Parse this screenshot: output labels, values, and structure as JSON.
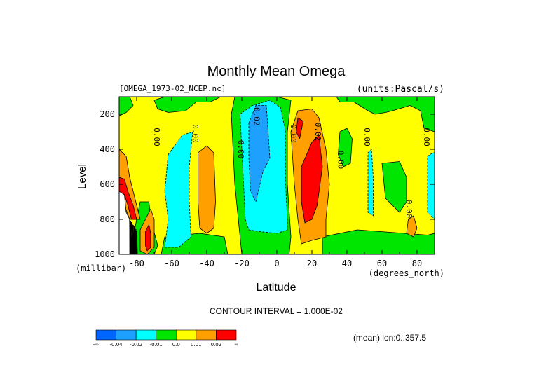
{
  "chart_data": {
    "type": "heatmap",
    "title": "Monthly Mean Omega",
    "dataset_label": "[OMEGA_1973-02_NCEP.nc]",
    "units_label": "(units:Pascal/s)",
    "xlabel": "Latitude",
    "x_units_label": "(degrees_north)",
    "ylabel": "Level",
    "y_units_label": "(millibar)",
    "xlim": [
      -90,
      90
    ],
    "ylim": [
      1000,
      100
    ],
    "x_ticks": [
      -80,
      -60,
      -40,
      -20,
      0,
      20,
      40,
      60,
      80
    ],
    "x_tick_labels": [
      "-80",
      "-60",
      "-40",
      "-20",
      "0",
      "20",
      "40",
      "60",
      "80"
    ],
    "y_ticks": [
      200,
      400,
      600,
      800,
      1000
    ],
    "y_tick_labels": [
      "200",
      "400",
      "600",
      "800",
      "1000"
    ],
    "contour_interval_text": "CONTOUR INTERVAL = 1.000E-02",
    "subset_text": "(mean) lon:0..357.5",
    "contour_levels": [
      -0.04,
      -0.02,
      -0.01,
      0.0,
      0.01,
      0.02
    ],
    "colorbar": {
      "colors": [
        "#0064ff",
        "#1ea0ff",
        "#00ffff",
        "#00e600",
        "#ffff00",
        "#ffa000",
        "#ff0000"
      ],
      "labels": [
        "-∞",
        "-0.04",
        "-0.02",
        "-0.01",
        "0.0",
        "0.01",
        "0.02",
        "∞"
      ]
    },
    "contour_labels": [
      {
        "text": "0.00",
        "lat": -70,
        "lev": 330
      },
      {
        "text": "0.00",
        "lat": -48,
        "lev": 310
      },
      {
        "text": "0.00",
        "lat": -22,
        "lev": 400
      },
      {
        "text": "-0.02",
        "lat": -13,
        "lev": 200
      },
      {
        "text": "0.00",
        "lat": 8,
        "lev": 310
      },
      {
        "text": "0.02",
        "lat": 22,
        "lev": 300
      },
      {
        "text": "0.00",
        "lat": 35,
        "lev": 460
      },
      {
        "text": "0.00",
        "lat": 50,
        "lev": 330
      },
      {
        "text": "0.00",
        "lat": 74,
        "lev": 740
      },
      {
        "text": "0.00",
        "lat": 84,
        "lev": 330
      }
    ],
    "regions": [
      {
        "c": 4,
        "pts": [
          [
            -90,
            100
          ],
          [
            90,
            100
          ],
          [
            90,
            1000
          ],
          [
            -90,
            1000
          ]
        ]
      },
      {
        "c": 3,
        "pts": [
          [
            -90,
            100
          ],
          [
            -84,
            100
          ],
          [
            -82,
            150
          ],
          [
            -86,
            190
          ],
          [
            -90,
            210
          ]
        ]
      },
      {
        "c": 3,
        "pts": [
          [
            -64,
            100
          ],
          [
            -32,
            100
          ],
          [
            -38,
            130
          ],
          [
            -46,
            130
          ],
          [
            -52,
            180
          ],
          [
            -62,
            190
          ],
          [
            -68,
            170
          ],
          [
            -70,
            120
          ]
        ]
      },
      {
        "c": 3,
        "pts": [
          [
            -24,
            100
          ],
          [
            0,
            100
          ],
          [
            8,
            120
          ],
          [
            6,
            300
          ],
          [
            6,
            600
          ],
          [
            8,
            900
          ],
          [
            7,
            1000
          ],
          [
            -20,
            1000
          ],
          [
            -24,
            600
          ],
          [
            -26,
            200
          ]
        ]
      },
      {
        "c": 3,
        "pts": [
          [
            34,
            100
          ],
          [
            90,
            100
          ],
          [
            90,
            300
          ],
          [
            84,
            280
          ],
          [
            82,
            180
          ],
          [
            76,
            150
          ],
          [
            66,
            180
          ],
          [
            62,
            190
          ],
          [
            56,
            200
          ],
          [
            52,
            180
          ],
          [
            44,
            130
          ],
          [
            36,
            130
          ]
        ]
      },
      {
        "c": 3,
        "pts": [
          [
            -78,
            700
          ],
          [
            -73,
            700
          ],
          [
            -72,
            800
          ],
          [
            -68,
            950
          ],
          [
            -70,
            1000
          ],
          [
            -82,
            1000
          ],
          [
            -82,
            900
          ],
          [
            -80,
            800
          ]
        ]
      },
      {
        "c": 3,
        "pts": [
          [
            -64,
            900
          ],
          [
            -44,
            880
          ],
          [
            -30,
            900
          ],
          [
            -28,
            1000
          ],
          [
            -66,
            1000
          ]
        ]
      },
      {
        "c": 3,
        "pts": [
          [
            26,
            900
          ],
          [
            46,
            860
          ],
          [
            86,
            890
          ],
          [
            90,
            880
          ],
          [
            90,
            1000
          ],
          [
            26,
            1000
          ]
        ]
      },
      {
        "c": 3,
        "pts": [
          [
            36,
            300
          ],
          [
            40,
            280
          ],
          [
            43,
            340
          ],
          [
            42,
            480
          ],
          [
            38,
            500
          ],
          [
            35,
            430
          ]
        ]
      },
      {
        "c": 3,
        "pts": [
          [
            60,
            480
          ],
          [
            70,
            470
          ],
          [
            74,
            560
          ],
          [
            74,
            700
          ],
          [
            70,
            760
          ],
          [
            62,
            680
          ]
        ]
      },
      {
        "c": 2,
        "pts": [
          [
            -62,
            430
          ],
          [
            -54,
            320
          ],
          [
            -48,
            300
          ],
          [
            -50,
            500
          ],
          [
            -50,
            700
          ],
          [
            -49,
            900
          ],
          [
            -56,
            960
          ],
          [
            -64,
            960
          ],
          [
            -62,
            800
          ],
          [
            -64,
            640
          ]
        ]
      },
      {
        "c": 2,
        "pts": [
          [
            -21,
            200
          ],
          [
            -14,
            150
          ],
          [
            -4,
            120
          ],
          [
            2,
            160
          ],
          [
            5,
            300
          ],
          [
            5,
            600
          ],
          [
            6,
            800
          ],
          [
            6,
            860
          ],
          [
            0,
            880
          ],
          [
            -10,
            870
          ],
          [
            -16,
            860
          ],
          [
            -18,
            800
          ],
          [
            -19,
            600
          ],
          [
            -20,
            400
          ]
        ]
      },
      {
        "c": 2,
        "pts": [
          [
            52,
            420
          ],
          [
            54,
            400
          ],
          [
            55,
            560
          ],
          [
            55,
            780
          ],
          [
            52,
            760
          ]
        ]
      },
      {
        "c": 2,
        "pts": [
          [
            86,
            440
          ],
          [
            89,
            420
          ],
          [
            90,
            420
          ],
          [
            90,
            800
          ],
          [
            86,
            760
          ]
        ]
      },
      {
        "c": 1,
        "pts": [
          [
            -16,
            250
          ],
          [
            -12,
            150
          ],
          [
            -6,
            150
          ],
          [
            -5,
            300
          ],
          [
            -4,
            450
          ],
          [
            -8,
            530
          ],
          [
            -12,
            700
          ],
          [
            -15,
            640
          ],
          [
            -16,
            450
          ]
        ]
      },
      {
        "c": 5,
        "pts": [
          [
            -90,
            400
          ],
          [
            -86,
            440
          ],
          [
            -84,
            560
          ],
          [
            -82,
            640
          ],
          [
            -80,
            720
          ],
          [
            -78,
            800
          ],
          [
            -84,
            800
          ],
          [
            -90,
            640
          ]
        ]
      },
      {
        "c": 5,
        "pts": [
          [
            -45,
            420
          ],
          [
            -40,
            380
          ],
          [
            -36,
            420
          ],
          [
            -35,
            700
          ],
          [
            -36,
            850
          ],
          [
            -40,
            880
          ],
          [
            -44,
            850
          ],
          [
            -45,
            700
          ]
        ]
      },
      {
        "c": 5,
        "pts": [
          [
            -78,
            860
          ],
          [
            -72,
            740
          ],
          [
            -70,
            800
          ],
          [
            -70,
            960
          ],
          [
            -74,
            1000
          ],
          [
            -78,
            980
          ]
        ]
      },
      {
        "c": 5,
        "pts": [
          [
            8,
            300
          ],
          [
            12,
            180
          ],
          [
            20,
            170
          ],
          [
            24,
            220
          ],
          [
            28,
            400
          ],
          [
            30,
            600
          ],
          [
            28,
            800
          ],
          [
            28,
            900
          ],
          [
            20,
            920
          ],
          [
            14,
            940
          ],
          [
            12,
            800
          ],
          [
            10,
            600
          ]
        ]
      },
      {
        "c": 5,
        "pts": [
          [
            75,
            800
          ],
          [
            78,
            780
          ],
          [
            80,
            850
          ],
          [
            78,
            900
          ],
          [
            74,
            880
          ]
        ]
      },
      {
        "c": 6,
        "pts": [
          [
            11,
            300
          ],
          [
            12,
            220
          ],
          [
            15,
            240
          ],
          [
            13,
            340
          ]
        ]
      },
      {
        "c": 6,
        "pts": [
          [
            14,
            500
          ],
          [
            20,
            360
          ],
          [
            24,
            320
          ],
          [
            26,
            500
          ],
          [
            23,
            720
          ],
          [
            20,
            800
          ],
          [
            16,
            820
          ],
          [
            14,
            700
          ]
        ]
      },
      {
        "c": 6,
        "pts": [
          [
            -90,
            560
          ],
          [
            -87,
            570
          ],
          [
            -85,
            640
          ],
          [
            -82,
            720
          ],
          [
            -80,
            800
          ],
          [
            -83,
            800
          ],
          [
            -85,
            720
          ],
          [
            -87,
            660
          ],
          [
            -90,
            640
          ]
        ]
      },
      {
        "c": 6,
        "pts": [
          [
            -75,
            870
          ],
          [
            -73,
            830
          ],
          [
            -72,
            880
          ],
          [
            -72,
            960
          ],
          [
            -74,
            980
          ],
          [
            -75,
            950
          ]
        ]
      },
      {
        "c": 7,
        "pts": [
          [
            -84,
            920
          ],
          [
            -82,
            880
          ],
          [
            -81,
            900
          ],
          [
            -80,
            1000
          ],
          [
            -84,
            1000
          ]
        ]
      }
    ],
    "terrain_mask": [
      [
        -90,
        640
      ],
      [
        -87,
        660
      ],
      [
        -86,
        760
      ],
      [
        -84,
        800
      ],
      [
        -84,
        1000
      ],
      [
        -90,
        1000
      ]
    ]
  }
}
